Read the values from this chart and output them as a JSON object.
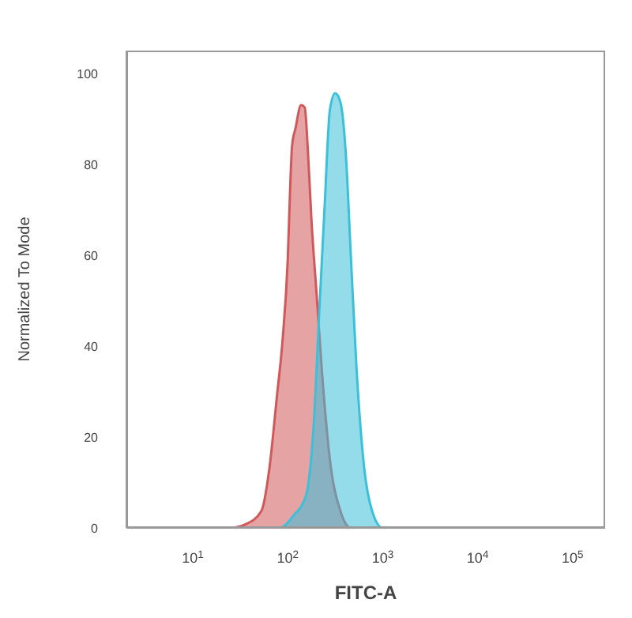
{
  "chart_data": {
    "type": "area",
    "xlabel": "FITC-A",
    "ylabel": "Normalized To Mode",
    "log": "x",
    "xlim": [
      2,
      220000
    ],
    "ylim": [
      0,
      105
    ],
    "xticks": [
      {
        "value": 10,
        "label": "10$^{1}$"
      },
      {
        "value": 100,
        "label": "10$^{2}$"
      },
      {
        "value": 1000,
        "label": "10$^{3}$"
      },
      {
        "value": 10000,
        "label": "10$^{4}$"
      },
      {
        "value": 100000,
        "label": "10$^{5}$"
      }
    ],
    "yticks": [
      0,
      20,
      40,
      60,
      80,
      100
    ],
    "series": [
      {
        "color": "#d0585a",
        "x": [
          2,
          24.5,
          36,
          52.7,
          64,
          77,
          88,
          100,
          107,
          111,
          121,
          138,
          151,
          163,
          178,
          202,
          230,
          278,
          359,
          464,
          220000
        ],
        "values": [
          0,
          0,
          0.8,
          3.7,
          13,
          29,
          41,
          59,
          77,
          84,
          88,
          93,
          92.5,
          83,
          67.5,
          51,
          34,
          15,
          3.7,
          0,
          0
        ]
      },
      {
        "color": "#3cc0d8",
        "x": [
          2,
          83,
          114,
          156,
          190,
          215,
          245,
          278,
          316,
          359,
          408,
          464,
          527,
          640,
          774,
          1000,
          220000
        ],
        "values": [
          0,
          0,
          2.6,
          7.2,
          24.6,
          47.8,
          71,
          92,
          95.6,
          93.6,
          82.6,
          59,
          36,
          13,
          3.7,
          0,
          0
        ]
      }
    ]
  }
}
